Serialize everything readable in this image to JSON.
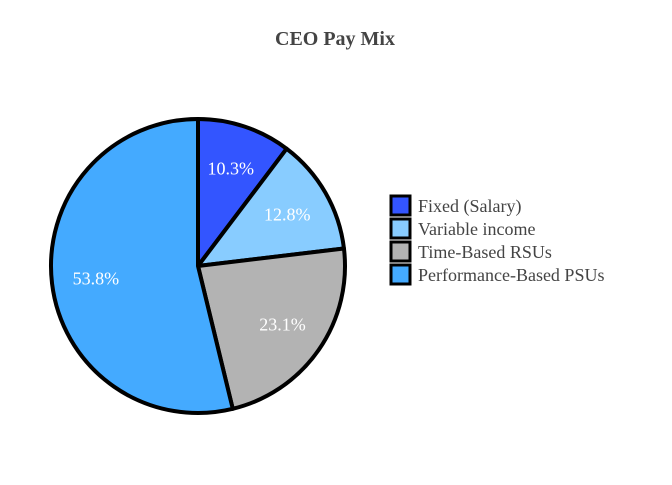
{
  "chart_data": {
    "type": "pie",
    "title": "CEO Pay Mix",
    "labels": [
      "Fixed (Salary)",
      "Variable income",
      "Time-Based RSUs",
      "Performance-Based PSUs"
    ],
    "values": [
      10.3,
      12.8,
      23.1,
      53.8
    ],
    "value_labels": [
      "10.3%",
      "12.8%",
      "23.1%",
      "53.8%"
    ],
    "colors": [
      "#3355ff",
      "#88ccff",
      "#b3b3b3",
      "#44aaff"
    ],
    "start_angle_deg": 90,
    "direction": "clockwise",
    "legend": {
      "position": "right"
    }
  }
}
